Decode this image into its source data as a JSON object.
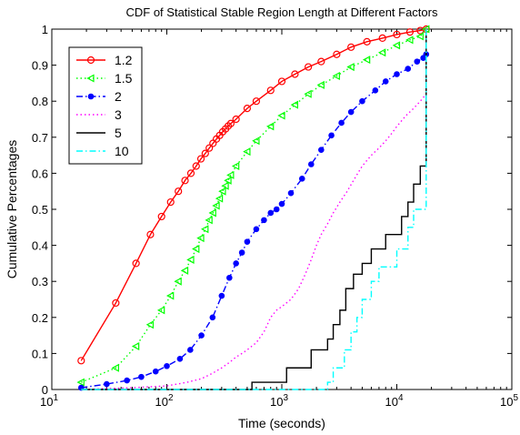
{
  "chart_data": {
    "type": "line",
    "title": "CDF of Statistical Stable Region Length at Different Factors",
    "xlabel": "Time (seconds)",
    "ylabel": "Cumulative Percentages",
    "xscale": "log",
    "xlim": [
      10,
      100000
    ],
    "ylim": [
      0,
      1
    ],
    "x_ticks": [
      {
        "value": 10,
        "base": "10",
        "exp": "1"
      },
      {
        "value": 100,
        "base": "10",
        "exp": "2"
      },
      {
        "value": 1000,
        "base": "10",
        "exp": "3"
      },
      {
        "value": 10000,
        "base": "10",
        "exp": "4"
      },
      {
        "value": 100000,
        "base": "10",
        "exp": "5"
      }
    ],
    "y_ticks": [
      {
        "value": 0,
        "label": "0"
      },
      {
        "value": 0.1,
        "label": "0.1"
      },
      {
        "value": 0.2,
        "label": "0.2"
      },
      {
        "value": 0.3,
        "label": "0.3"
      },
      {
        "value": 0.4,
        "label": "0.4"
      },
      {
        "value": 0.5,
        "label": "0.5"
      },
      {
        "value": 0.6,
        "label": "0.6"
      },
      {
        "value": 0.7,
        "label": "0.7"
      },
      {
        "value": 0.8,
        "label": "0.8"
      },
      {
        "value": 0.9,
        "label": "0.9"
      },
      {
        "value": 1,
        "label": "1"
      }
    ],
    "grid": false,
    "legend": "top-left",
    "series": [
      {
        "name": "1.2",
        "color": "#ff0000",
        "dash": "solid",
        "marker": "circle",
        "x": [
          18,
          36,
          54,
          72,
          90,
          108,
          126,
          144,
          162,
          180,
          198,
          216,
          234,
          252,
          270,
          288,
          306,
          324,
          342,
          360,
          400,
          500,
          600,
          800,
          1000,
          1300,
          1700,
          2200,
          3000,
          4000,
          5500,
          7500,
          10000,
          13000,
          16000,
          18000
        ],
        "y": [
          0.08,
          0.24,
          0.35,
          0.43,
          0.48,
          0.52,
          0.55,
          0.58,
          0.6,
          0.62,
          0.64,
          0.655,
          0.67,
          0.683,
          0.695,
          0.705,
          0.715,
          0.723,
          0.731,
          0.738,
          0.75,
          0.78,
          0.8,
          0.83,
          0.855,
          0.875,
          0.895,
          0.91,
          0.93,
          0.95,
          0.965,
          0.975,
          0.985,
          0.992,
          0.996,
          1.0
        ]
      },
      {
        "name": "1.5",
        "color": "#00ff00",
        "dash": "dot",
        "marker": "triangle",
        "x": [
          18,
          36,
          54,
          72,
          90,
          108,
          126,
          144,
          162,
          180,
          198,
          216,
          234,
          252,
          270,
          288,
          306,
          324,
          342,
          360,
          400,
          500,
          600,
          800,
          1000,
          1300,
          1700,
          2200,
          3000,
          4000,
          5500,
          7500,
          10000,
          13000,
          16000,
          18000
        ],
        "y": [
          0.02,
          0.06,
          0.12,
          0.18,
          0.22,
          0.26,
          0.3,
          0.33,
          0.36,
          0.39,
          0.42,
          0.445,
          0.47,
          0.49,
          0.51,
          0.53,
          0.55,
          0.565,
          0.58,
          0.595,
          0.62,
          0.66,
          0.69,
          0.73,
          0.76,
          0.79,
          0.82,
          0.845,
          0.87,
          0.895,
          0.915,
          0.935,
          0.955,
          0.97,
          0.98,
          1.0
        ]
      },
      {
        "name": "2",
        "color": "#0000ff",
        "dash": "dash-dot",
        "marker": "dot",
        "x": [
          18,
          30,
          45,
          60,
          80,
          100,
          130,
          160,
          200,
          250,
          300,
          350,
          400,
          450,
          500,
          600,
          700,
          800,
          900,
          1000,
          1200,
          1500,
          1800,
          2200,
          2700,
          3300,
          4000,
          5000,
          6500,
          8000,
          10000,
          12500,
          15000,
          17000,
          18000
        ],
        "y": [
          0.005,
          0.015,
          0.025,
          0.035,
          0.05,
          0.065,
          0.085,
          0.11,
          0.15,
          0.2,
          0.26,
          0.31,
          0.35,
          0.38,
          0.41,
          0.445,
          0.47,
          0.49,
          0.5,
          0.515,
          0.545,
          0.585,
          0.625,
          0.665,
          0.705,
          0.74,
          0.77,
          0.8,
          0.83,
          0.855,
          0.875,
          0.89,
          0.91,
          0.92,
          0.93
        ]
      },
      {
        "name": "3",
        "color": "#ff00ff",
        "dash": "dot",
        "marker": "none",
        "x": [
          18,
          50,
          100,
          150,
          200,
          250,
          300,
          350,
          400,
          450,
          500,
          600,
          700,
          800,
          900,
          1000,
          1200,
          1400,
          1600,
          1800,
          2000,
          2200,
          2500,
          2800,
          3200,
          3700,
          4200,
          5000,
          6000,
          7000,
          8000,
          9000,
          10000,
          12000,
          14000,
          16000,
          18000
        ],
        "y": [
          0.0,
          0.005,
          0.01,
          0.02,
          0.03,
          0.045,
          0.06,
          0.075,
          0.09,
          0.1,
          0.11,
          0.13,
          0.16,
          0.2,
          0.22,
          0.23,
          0.25,
          0.28,
          0.32,
          0.36,
          0.4,
          0.43,
          0.46,
          0.49,
          0.52,
          0.55,
          0.58,
          0.62,
          0.65,
          0.67,
          0.69,
          0.71,
          0.73,
          0.76,
          0.78,
          0.8,
          0.82
        ]
      },
      {
        "name": "5",
        "color": "#000000",
        "dash": "solid",
        "marker": "none",
        "step": true,
        "x": [
          18,
          450,
          550,
          900,
          1100,
          1600,
          1800,
          2500,
          2800,
          3200,
          3600,
          4200,
          5000,
          6000,
          7000,
          8000,
          9500,
          11000,
          12500,
          14000,
          16000,
          18000,
          18000
        ],
        "y": [
          0.0,
          0.0,
          0.02,
          0.02,
          0.06,
          0.06,
          0.11,
          0.14,
          0.18,
          0.22,
          0.28,
          0.32,
          0.35,
          0.39,
          0.39,
          0.43,
          0.43,
          0.48,
          0.52,
          0.57,
          0.62,
          0.67,
          1.0
        ]
      },
      {
        "name": "10",
        "color": "#00ffff",
        "dash": "dash-dot",
        "marker": "none",
        "step": true,
        "x": [
          18,
          2200,
          2500,
          2800,
          3500,
          4000,
          4500,
          5000,
          6000,
          7000,
          8000,
          9000,
          10000,
          11000,
          12500,
          14000,
          16000,
          18000,
          18000
        ],
        "y": [
          0.0,
          0.0,
          0.02,
          0.06,
          0.11,
          0.16,
          0.2,
          0.25,
          0.3,
          0.34,
          0.34,
          0.34,
          0.39,
          0.39,
          0.45,
          0.5,
          0.5,
          0.56,
          1.0
        ]
      }
    ]
  }
}
